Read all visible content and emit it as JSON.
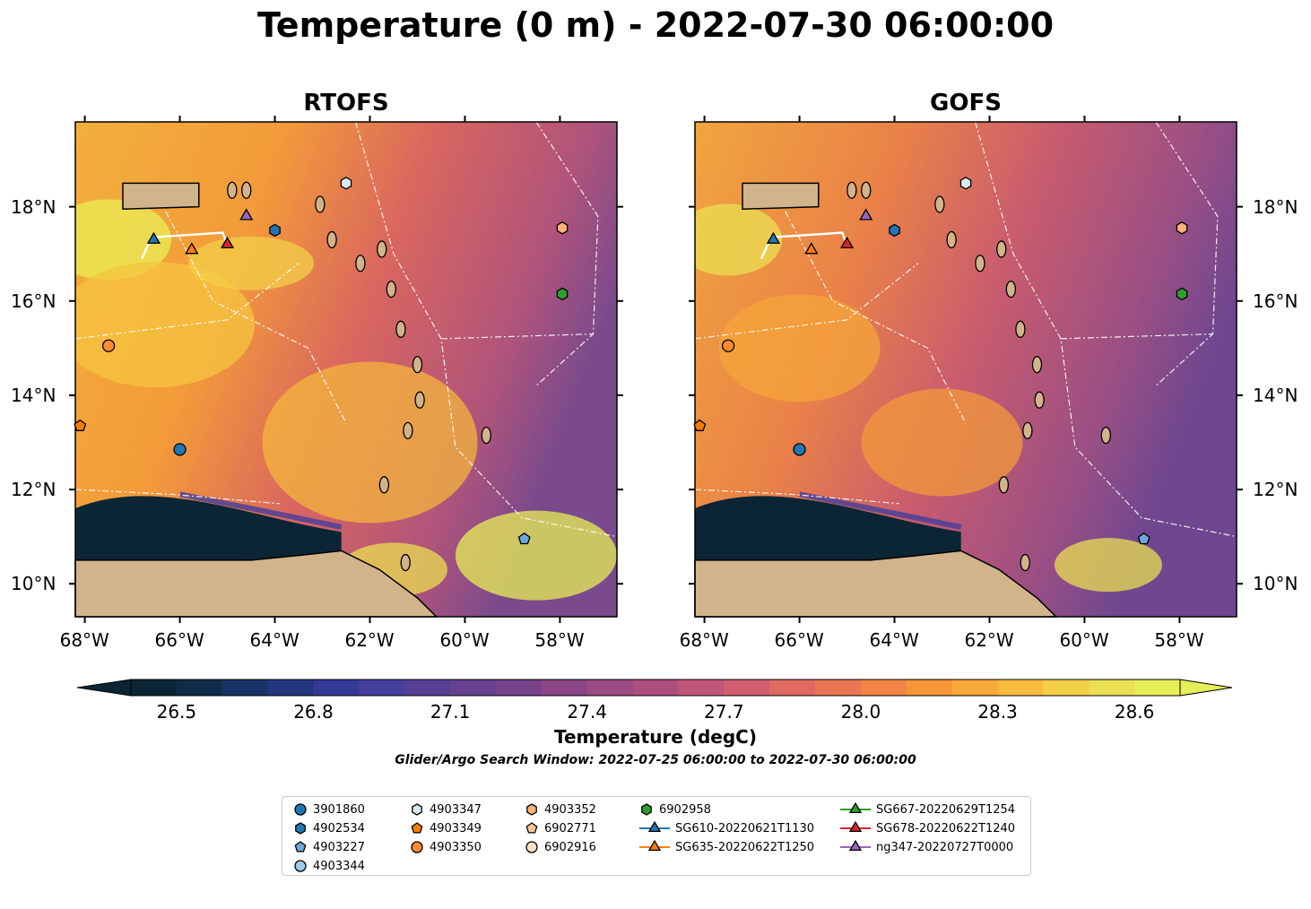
{
  "title": "Temperature (0 m) - 2022-07-30 06:00:00",
  "panels": [
    {
      "title": "RTOFS"
    },
    {
      "title": "GOFS"
    }
  ],
  "lon_ticks": [
    "68°W",
    "66°W",
    "64°W",
    "62°W",
    "60°W",
    "58°W"
  ],
  "lat_ticks": [
    "18°N",
    "16°N",
    "14°N",
    "12°N",
    "10°N"
  ],
  "extent": {
    "lon": [
      -68.2,
      -56.8
    ],
    "lat": [
      9.3,
      19.8
    ]
  },
  "colorbar": {
    "label": "Temperature (degC)",
    "ticks": [
      "26.5",
      "26.8",
      "27.1",
      "27.4",
      "27.7",
      "28.0",
      "28.3",
      "28.6"
    ],
    "range": [
      26.4,
      28.7
    ],
    "colors": [
      "#0b2535",
      "#112c4a",
      "#1a3366",
      "#24367f",
      "#343a95",
      "#453e9c",
      "#563f95",
      "#66418f",
      "#77438b",
      "#8a4686",
      "#9b4a82",
      "#ad4f7e",
      "#c0567a",
      "#d15f70",
      "#e06a62",
      "#ea7653",
      "#f28345",
      "#f79638",
      "#f9a83a",
      "#f9bb3e",
      "#f3cf48",
      "#eadf52",
      "#e6ee58"
    ]
  },
  "search_window": "Glider/Argo Search Window: 2022-07-25 06:00:00 to 2022-07-30 06:00:00",
  "legend": [
    {
      "label": "3901860",
      "marker": "circle",
      "color": "#1f77b4"
    },
    {
      "label": "4902534",
      "marker": "hexagon",
      "color": "#1f77b4"
    },
    {
      "label": "4903227",
      "marker": "pentagon",
      "color": "#6fa8dc"
    },
    {
      "label": "4903344",
      "marker": "circle",
      "color": "#9fc9ea"
    },
    {
      "label": "4903347",
      "marker": "hexagon",
      "color": "#d6eaf8"
    },
    {
      "label": "4903349",
      "marker": "pentagon",
      "color": "#f57c00"
    },
    {
      "label": "4903350",
      "marker": "circle",
      "color": "#ff8c33"
    },
    {
      "label": "4903352",
      "marker": "hexagon",
      "color": "#ffb07a"
    },
    {
      "label": "6902771",
      "marker": "pentagon",
      "color": "#ffc9a0"
    },
    {
      "label": "6902916",
      "marker": "circle",
      "color": "#ffe0c4"
    },
    {
      "label": "6902958",
      "marker": "hexagon",
      "color": "#2ca02c"
    },
    {
      "label": "SG610-20220621T1130",
      "marker": "triangle",
      "color": "#1f77b4"
    },
    {
      "label": "SG635-20220622T1250",
      "marker": "triangle",
      "color": "#ff7f0e"
    },
    {
      "label": "SG667-20220629T1254",
      "marker": "triangle",
      "color": "#2ca02c"
    },
    {
      "label": "SG678-20220622T1240",
      "marker": "triangle",
      "color": "#d62728"
    },
    {
      "label": "ng347-20220727T0000",
      "marker": "triangle",
      "color": "#9467bd"
    }
  ],
  "platforms": [
    {
      "id": "3901860",
      "lon": -66.0,
      "lat": 12.85,
      "marker": "circle",
      "color": "#1f77b4"
    },
    {
      "id": "4902534",
      "lon": -64.0,
      "lat": 17.5,
      "marker": "hexagon",
      "color": "#1f77b4"
    },
    {
      "id": "4903227",
      "lon": -58.75,
      "lat": 10.95,
      "marker": "pentagon",
      "color": "#6fa8dc"
    },
    {
      "id": "4903347",
      "lon": -62.5,
      "lat": 18.5,
      "marker": "hexagon",
      "color": "#d6eaf8"
    },
    {
      "id": "4903349",
      "lon": -68.1,
      "lat": 13.35,
      "marker": "pentagon",
      "color": "#f57c00"
    },
    {
      "id": "4903350",
      "lon": -67.5,
      "lat": 15.05,
      "marker": "circle",
      "color": "#ff8c33"
    },
    {
      "id": "4903352",
      "lon": -57.95,
      "lat": 17.55,
      "marker": "hexagon",
      "color": "#ffb07a"
    },
    {
      "id": "6902958",
      "lon": -57.95,
      "lat": 16.15,
      "marker": "hexagon",
      "color": "#2ca02c"
    },
    {
      "id": "SG610-20220621T1130",
      "lon": -66.55,
      "lat": 17.3,
      "marker": "triangle",
      "color": "#1f77b4"
    },
    {
      "id": "SG635-20220622T1250",
      "lon": -65.75,
      "lat": 17.08,
      "marker": "triangle",
      "color": "#ff7f0e"
    },
    {
      "id": "SG678-20220622T1240",
      "lon": -65.0,
      "lat": 17.2,
      "marker": "triangle",
      "color": "#d62728"
    },
    {
      "id": "ng347-20220727T0000",
      "lon": -64.6,
      "lat": 17.8,
      "marker": "triangle",
      "color": "#9467bd"
    }
  ]
}
